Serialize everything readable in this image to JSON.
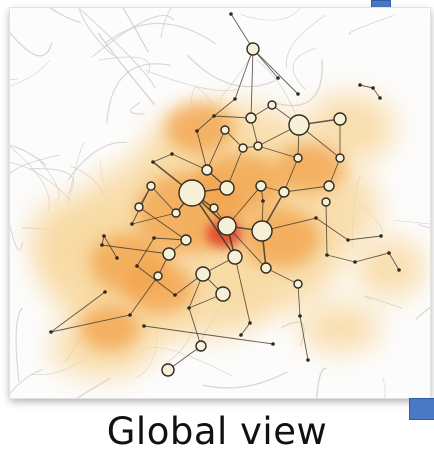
{
  "caption": "Global view",
  "colors": {
    "heat_core": "#e0402a",
    "heat_mid": "#f2a24a",
    "heat_outer": "#f8d9a0",
    "node_fill": "#f6f0d6",
    "node_stroke": "#2f2a22",
    "edge": "#3a342c",
    "road": "#c9c9c9",
    "accent": "#4a78c4"
  },
  "icons": [
    "corner-marker-top",
    "corner-marker-bottom"
  ]
}
